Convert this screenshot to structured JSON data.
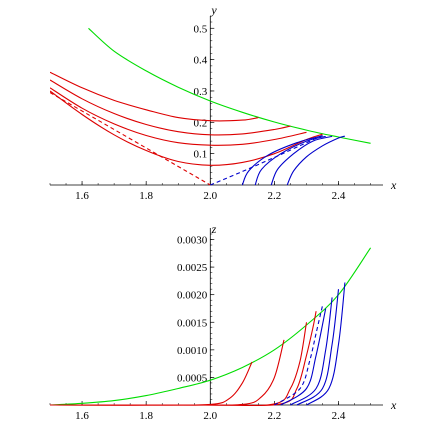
{
  "chart_data": [
    {
      "type": "line",
      "xlabel": "x",
      "ylabel": "y",
      "xlim": [
        1.5,
        2.52
      ],
      "ylim": [
        0,
        0.52
      ],
      "x_ticks": [
        1.6,
        1.8,
        2.0,
        2.2,
        2.4
      ],
      "x_tick_labels": [
        "1.6",
        "1.8",
        "2.0",
        "2.2",
        "2.4"
      ],
      "y_ticks": [
        0.1,
        0.2,
        0.3,
        0.4,
        0.5
      ],
      "y_tick_labels": [
        "0.1",
        "0.2",
        "0.3",
        "0.4",
        "0.5"
      ],
      "colors": {
        "green": "#00dd00",
        "red": "#dd0000",
        "blue": "#0000cc"
      },
      "series": [
        {
          "color": "green",
          "style": "solid",
          "x": [
            1.62,
            1.7,
            1.8,
            1.9,
            2.0,
            2.1,
            2.2,
            2.3,
            2.4,
            2.5
          ],
          "y": [
            0.5,
            0.427,
            0.364,
            0.312,
            0.268,
            0.232,
            0.201,
            0.175,
            0.153,
            0.133
          ]
        },
        {
          "color": "red",
          "style": "solid",
          "x": [
            1.5,
            1.6,
            1.7,
            1.8,
            1.9,
            2.0,
            2.1,
            2.15
          ],
          "y": [
            0.36,
            0.31,
            0.27,
            0.24,
            0.215,
            0.205,
            0.207,
            0.215
          ]
        },
        {
          "color": "red",
          "style": "solid",
          "x": [
            1.5,
            1.6,
            1.7,
            1.8,
            1.9,
            2.0,
            2.1,
            2.2,
            2.25
          ],
          "y": [
            0.335,
            0.275,
            0.228,
            0.193,
            0.17,
            0.16,
            0.163,
            0.177,
            0.188
          ]
        },
        {
          "color": "red",
          "style": "solid",
          "x": [
            1.5,
            1.6,
            1.7,
            1.8,
            1.9,
            2.0,
            2.1,
            2.2,
            2.3
          ],
          "y": [
            0.31,
            0.245,
            0.195,
            0.158,
            0.135,
            0.127,
            0.13,
            0.145,
            0.168
          ]
        },
        {
          "color": "red",
          "style": "solid",
          "x": [
            1.5,
            1.6,
            1.7,
            1.8,
            1.9,
            2.0,
            2.1,
            2.2,
            2.3,
            2.35
          ],
          "y": [
            0.3,
            0.225,
            0.16,
            0.11,
            0.075,
            0.063,
            0.072,
            0.1,
            0.145,
            0.162
          ]
        },
        {
          "color": "red",
          "style": "dashed",
          "x": [
            1.5,
            2.0
          ],
          "y": [
            0.295,
            0.0
          ]
        },
        {
          "color": "blue",
          "style": "dashed",
          "x": [
            2.0,
            2.1,
            2.2,
            2.3,
            2.35
          ],
          "y": [
            0.0,
            0.043,
            0.088,
            0.135,
            0.158
          ]
        },
        {
          "color": "blue",
          "style": "solid",
          "x": [
            2.24,
            2.26,
            2.3,
            2.35,
            2.4,
            2.42
          ],
          "y": [
            0.0,
            0.045,
            0.09,
            0.125,
            0.15,
            0.156
          ]
        },
        {
          "color": "blue",
          "style": "solid",
          "x": [
            2.19,
            2.21,
            2.26,
            2.32,
            2.38
          ],
          "y": [
            0.0,
            0.05,
            0.1,
            0.14,
            0.155
          ]
        },
        {
          "color": "blue",
          "style": "solid",
          "x": [
            2.14,
            2.16,
            2.22,
            2.3,
            2.36
          ],
          "y": [
            0.0,
            0.05,
            0.1,
            0.14,
            0.155
          ]
        },
        {
          "color": "blue",
          "style": "solid",
          "x": [
            2.1,
            2.12,
            2.18,
            2.27,
            2.35
          ],
          "y": [
            0.0,
            0.045,
            0.095,
            0.135,
            0.157
          ]
        }
      ]
    },
    {
      "type": "line",
      "xlabel": "x",
      "ylabel": "z",
      "xlim": [
        1.5,
        2.52
      ],
      "ylim": [
        0,
        0.0031
      ],
      "x_ticks": [
        1.6,
        1.8,
        2.0,
        2.2,
        2.4
      ],
      "x_tick_labels": [
        "1.6",
        "1.8",
        "2.0",
        "2.2",
        "2.4"
      ],
      "y_ticks": [
        0.0005,
        0.001,
        0.0015,
        0.002,
        0.0025,
        0.003
      ],
      "y_tick_labels": [
        "0.0005",
        "0.0010",
        "0.0015",
        "0.0020",
        "0.0025",
        "0.0030"
      ],
      "colors": {
        "green": "#00dd00",
        "red": "#dd0000",
        "blue": "#0000cc"
      },
      "series": [
        {
          "color": "green",
          "style": "solid",
          "x": [
            1.5,
            1.6,
            1.7,
            1.8,
            1.9,
            2.0,
            2.1,
            2.2,
            2.3,
            2.4,
            2.5
          ],
          "y": [
            0.0,
            3e-05,
            8e-05,
            0.00017,
            0.0003,
            0.00045,
            0.00068,
            0.001,
            0.00145,
            0.002,
            0.00285
          ]
        },
        {
          "color": "red",
          "style": "solid",
          "x": [
            1.5,
            1.8,
            2.0,
            2.06,
            2.1,
            2.13
          ],
          "y": [
            0.0,
            0.0,
            1e-05,
            0.00012,
            0.0004,
            0.00078
          ]
        },
        {
          "color": "red",
          "style": "solid",
          "x": [
            1.5,
            1.9,
            2.1,
            2.16,
            2.2,
            2.23
          ],
          "y": [
            0.0,
            0.0,
            1e-05,
            0.00015,
            0.0005,
            0.00118
          ]
        },
        {
          "color": "red",
          "style": "solid",
          "x": [
            1.5,
            2.0,
            2.2,
            2.25,
            2.28,
            2.3
          ],
          "y": [
            0.0,
            0.0,
            2e-05,
            0.0003,
            0.0008,
            0.0015
          ]
        },
        {
          "color": "red",
          "style": "solid",
          "x": [
            1.5,
            2.0,
            2.22,
            2.27,
            2.3,
            2.32,
            2.33
          ],
          "y": [
            0.0,
            0.0,
            2e-05,
            0.0003,
            0.0009,
            0.0014,
            0.0017
          ]
        },
        {
          "color": "blue",
          "style": "dashed",
          "x": [
            2.2,
            2.28,
            2.31,
            2.33,
            2.35
          ],
          "y": [
            0.0,
            0.0003,
            0.0008,
            0.0013,
            0.0018
          ]
        },
        {
          "color": "blue",
          "style": "solid",
          "x": [
            2.25,
            2.33,
            2.36,
            2.38
          ],
          "y": [
            0.0,
            0.0003,
            0.001,
            0.00195
          ]
        },
        {
          "color": "blue",
          "style": "solid",
          "x": [
            2.3,
            2.37,
            2.4,
            2.42
          ],
          "y": [
            0.0,
            0.0003,
            0.0011,
            0.00222
          ]
        },
        {
          "color": "blue",
          "style": "solid",
          "x": [
            2.27,
            2.35,
            2.38,
            2.4
          ],
          "y": [
            0.0,
            0.0003,
            0.0011,
            0.0021
          ]
        },
        {
          "color": "blue",
          "style": "solid",
          "x": [
            2.22,
            2.3,
            2.33,
            2.36
          ],
          "y": [
            0.0,
            0.0003,
            0.0009,
            0.00175
          ]
        }
      ]
    }
  ]
}
